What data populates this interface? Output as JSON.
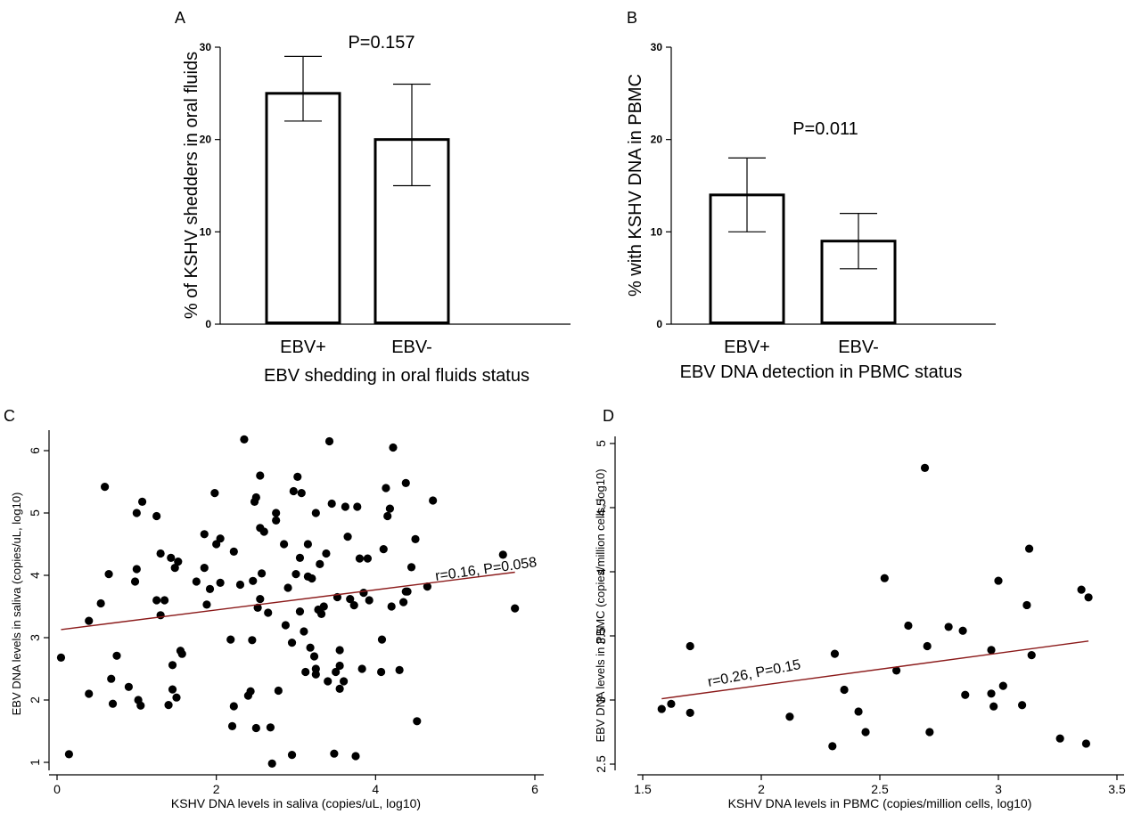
{
  "chart_data": [
    {
      "type": "bar",
      "panel_label": "A",
      "categories": [
        "EBV+",
        "EBV-"
      ],
      "values": [
        25,
        20
      ],
      "error_low": [
        22,
        15
      ],
      "error_high": [
        29,
        26
      ],
      "annotation": "P=0.157",
      "xlabel": "EBV shedding in oral fluids status",
      "ylabel": "% of KSHV shedders in oral fluids",
      "ylim": [
        0,
        30
      ],
      "yticks": [
        0,
        10,
        20,
        30
      ]
    },
    {
      "type": "bar",
      "panel_label": "B",
      "categories": [
        "EBV+",
        "EBV-"
      ],
      "values": [
        14,
        9
      ],
      "error_low": [
        10,
        6
      ],
      "error_high": [
        18,
        12
      ],
      "annotation": "P=0.011",
      "xlabel": "EBV DNA detection in PBMC status",
      "ylabel": "% with KSHV DNA in PBMC",
      "ylim": [
        0,
        30
      ],
      "yticks": [
        0,
        10,
        20,
        30
      ]
    },
    {
      "type": "scatter",
      "panel_label": "C",
      "xlabel": "KSHV DNA levels in saliva (copies/uL, log10)",
      "ylabel": "EBV DNA levels in saliva (copies/uL, log10)",
      "xlim": [
        0,
        6
      ],
      "ylim": [
        1,
        6
      ],
      "xticks": [
        0,
        2,
        4,
        6
      ],
      "yticks": [
        1,
        2,
        3,
        4,
        5,
        6
      ],
      "fit_line": {
        "x": [
          0.05,
          5.75
        ],
        "y": [
          3.13,
          4.05
        ]
      },
      "annotation": "r=0.16, P=0.058",
      "points": [
        [
          0.05,
          2.68
        ],
        [
          0.15,
          1.13
        ],
        [
          0.4,
          3.27
        ],
        [
          0.4,
          2.1
        ],
        [
          0.55,
          3.55
        ],
        [
          0.6,
          5.42
        ],
        [
          0.65,
          4.02
        ],
        [
          0.68,
          2.34
        ],
        [
          0.7,
          1.94
        ],
        [
          0.75,
          2.71
        ],
        [
          0.9,
          2.21
        ],
        [
          0.98,
          3.9
        ],
        [
          1.0,
          4.1
        ],
        [
          1.0,
          5.0
        ],
        [
          1.02,
          2.0
        ],
        [
          1.05,
          1.91
        ],
        [
          1.07,
          5.18
        ],
        [
          1.25,
          3.6
        ],
        [
          1.25,
          4.95
        ],
        [
          1.3,
          4.35
        ],
        [
          1.3,
          3.36
        ],
        [
          1.35,
          3.6
        ],
        [
          1.4,
          1.92
        ],
        [
          1.43,
          4.28
        ],
        [
          1.45,
          2.17
        ],
        [
          1.45,
          2.56
        ],
        [
          1.48,
          4.12
        ],
        [
          1.5,
          2.04
        ],
        [
          1.52,
          4.22
        ],
        [
          1.55,
          2.79
        ],
        [
          1.57,
          2.74
        ],
        [
          1.75,
          3.9
        ],
        [
          1.85,
          4.66
        ],
        [
          1.85,
          4.12
        ],
        [
          1.88,
          3.53
        ],
        [
          1.92,
          3.78
        ],
        [
          2.0,
          4.5
        ],
        [
          1.98,
          5.32
        ],
        [
          2.05,
          3.88
        ],
        [
          2.05,
          4.59
        ],
        [
          2.18,
          2.97
        ],
        [
          2.2,
          1.58
        ],
        [
          2.22,
          1.9
        ],
        [
          2.22,
          4.38
        ],
        [
          2.3,
          3.85
        ],
        [
          2.35,
          6.18
        ],
        [
          2.4,
          2.07
        ],
        [
          2.43,
          2.14
        ],
        [
          2.45,
          2.96
        ],
        [
          2.46,
          3.91
        ],
        [
          2.48,
          5.18
        ],
        [
          2.5,
          5.25
        ],
        [
          2.5,
          1.55
        ],
        [
          2.52,
          3.48
        ],
        [
          2.55,
          3.62
        ],
        [
          2.55,
          4.76
        ],
        [
          2.55,
          5.6
        ],
        [
          2.57,
          4.03
        ],
        [
          2.6,
          4.7
        ],
        [
          2.65,
          3.4
        ],
        [
          2.68,
          1.56
        ],
        [
          2.7,
          0.98
        ],
        [
          2.75,
          5.0
        ],
        [
          2.75,
          4.88
        ],
        [
          2.78,
          2.15
        ],
        [
          2.85,
          4.5
        ],
        [
          2.87,
          3.2
        ],
        [
          2.9,
          3.8
        ],
        [
          2.95,
          2.92
        ],
        [
          2.95,
          1.12
        ],
        [
          2.97,
          5.35
        ],
        [
          3.0,
          4.02
        ],
        [
          3.02,
          5.58
        ],
        [
          3.05,
          3.42
        ],
        [
          3.05,
          4.28
        ],
        [
          3.07,
          5.32
        ],
        [
          3.1,
          3.1
        ],
        [
          3.12,
          2.45
        ],
        [
          3.15,
          4.5
        ],
        [
          3.15,
          3.98
        ],
        [
          3.18,
          2.84
        ],
        [
          3.2,
          3.95
        ],
        [
          3.23,
          2.7
        ],
        [
          3.25,
          5.0
        ],
        [
          3.25,
          2.5
        ],
        [
          3.25,
          2.41
        ],
        [
          3.28,
          3.45
        ],
        [
          3.3,
          4.18
        ],
        [
          3.32,
          3.38
        ],
        [
          3.35,
          3.5
        ],
        [
          3.38,
          4.35
        ],
        [
          3.4,
          2.3
        ],
        [
          3.42,
          6.15
        ],
        [
          3.45,
          5.15
        ],
        [
          3.48,
          1.14
        ],
        [
          3.5,
          2.45
        ],
        [
          3.52,
          3.65
        ],
        [
          3.55,
          2.8
        ],
        [
          3.55,
          2.55
        ],
        [
          3.55,
          2.18
        ],
        [
          3.6,
          2.3
        ],
        [
          3.62,
          5.1
        ],
        [
          3.65,
          4.62
        ],
        [
          3.68,
          3.62
        ],
        [
          3.73,
          3.52
        ],
        [
          3.75,
          1.1
        ],
        [
          3.77,
          5.1
        ],
        [
          3.8,
          4.27
        ],
        [
          3.83,
          2.5
        ],
        [
          3.85,
          3.72
        ],
        [
          3.9,
          4.27
        ],
        [
          3.92,
          3.6
        ],
        [
          4.07,
          2.45
        ],
        [
          4.08,
          2.97
        ],
        [
          4.1,
          4.42
        ],
        [
          4.13,
          5.4
        ],
        [
          4.15,
          4.95
        ],
        [
          4.18,
          5.07
        ],
        [
          4.2,
          3.5
        ],
        [
          4.22,
          6.05
        ],
        [
          4.3,
          2.48
        ],
        [
          4.35,
          3.57
        ],
        [
          4.38,
          3.74
        ],
        [
          4.38,
          5.48
        ],
        [
          4.4,
          3.74
        ],
        [
          4.45,
          4.13
        ],
        [
          4.5,
          4.58
        ],
        [
          4.52,
          1.66
        ],
        [
          4.65,
          3.82
        ],
        [
          4.72,
          5.2
        ],
        [
          5.6,
          4.33
        ],
        [
          5.75,
          3.47
        ]
      ]
    },
    {
      "type": "scatter",
      "panel_label": "D",
      "xlabel": "KSHV DNA levels in PBMC (copies/million cells, log10)",
      "ylabel": "EBV DNA levels in PBMC (copies/million cells, log10)",
      "xlim": [
        1.5,
        3.5
      ],
      "ylim": [
        2.5,
        5
      ],
      "xticks": [
        1.5,
        2,
        2.5,
        3,
        3.5
      ],
      "yticks": [
        2.5,
        3,
        3.5,
        4,
        4.5,
        5
      ],
      "fit_line": {
        "x": [
          1.58,
          3.38
        ],
        "y": [
          3.01,
          3.46
        ]
      },
      "annotation": "r=0.26, P=0.15",
      "points": [
        [
          1.58,
          2.93
        ],
        [
          1.62,
          2.97
        ],
        [
          1.7,
          2.9
        ],
        [
          1.7,
          3.42
        ],
        [
          2.12,
          2.87
        ],
        [
          2.3,
          2.64
        ],
        [
          2.31,
          3.36
        ],
        [
          2.35,
          3.08
        ],
        [
          2.41,
          2.91
        ],
        [
          2.44,
          2.75
        ],
        [
          2.52,
          3.95
        ],
        [
          2.57,
          3.23
        ],
        [
          2.62,
          3.58
        ],
        [
          2.69,
          4.81
        ],
        [
          2.7,
          3.42
        ],
        [
          2.71,
          2.75
        ],
        [
          2.79,
          3.57
        ],
        [
          2.85,
          3.54
        ],
        [
          2.86,
          3.04
        ],
        [
          2.97,
          3.39
        ],
        [
          2.97,
          3.05
        ],
        [
          2.98,
          2.95
        ],
        [
          3.0,
          3.93
        ],
        [
          3.02,
          3.11
        ],
        [
          3.1,
          2.96
        ],
        [
          3.12,
          3.74
        ],
        [
          3.13,
          4.18
        ],
        [
          3.14,
          3.35
        ],
        [
          3.26,
          2.7
        ],
        [
          3.35,
          3.86
        ],
        [
          3.37,
          2.66
        ],
        [
          3.38,
          3.8
        ]
      ]
    }
  ]
}
